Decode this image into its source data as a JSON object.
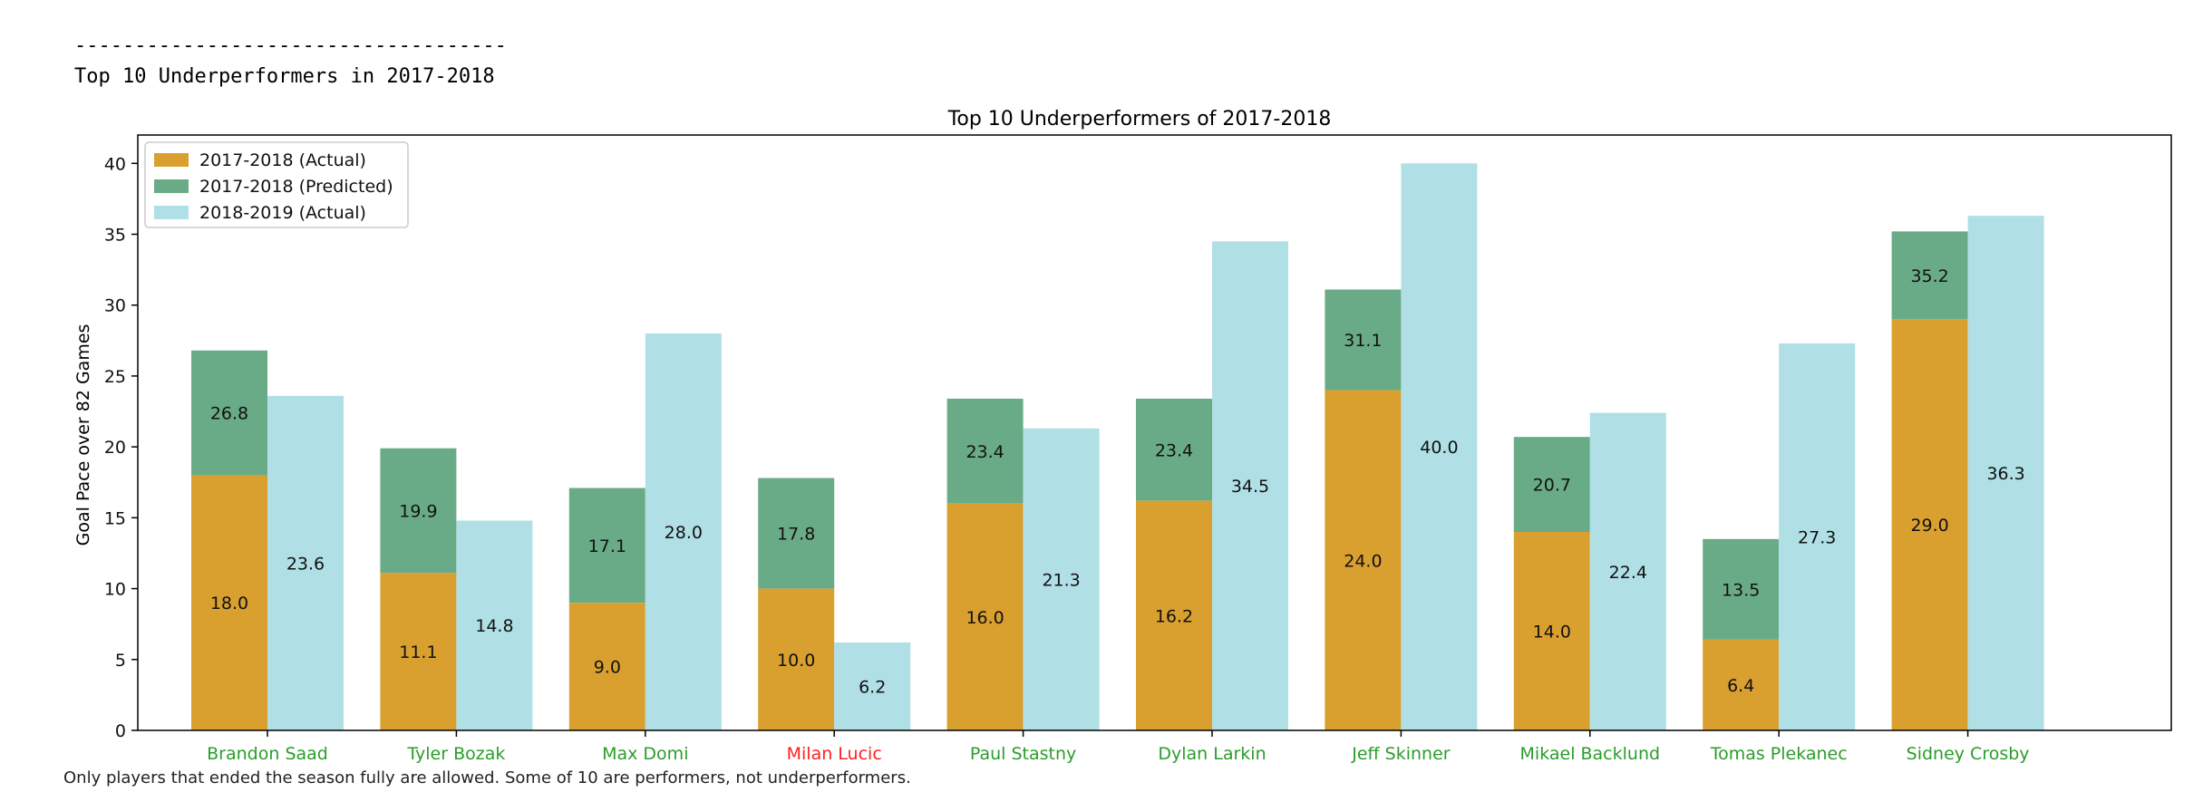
{
  "header": {
    "divider": "------------------------------------",
    "heading": "Top 10 Underperformers in 2017-2018"
  },
  "caption": "Only players that ended the season fully are allowed. Some of 10 are performers, not underperformers.",
  "colors": {
    "actual_2017": "#d9a030",
    "predicted_2017": "#6aab87",
    "actual_2018": "#b0e0e6",
    "label_good": "#2a9d2a",
    "label_bad": "#ff2020"
  },
  "chart_data": {
    "type": "bar",
    "title": "Top 10 Underperformers of 2017-2018",
    "xlabel": "",
    "ylabel": "Goal Pace over 82 Games",
    "ylim": [
      0,
      42
    ],
    "yticks": [
      0,
      5,
      10,
      15,
      20,
      25,
      30,
      35,
      40
    ],
    "grid": false,
    "legend_position": "top-left",
    "categories": [
      "Brandon Saad",
      "Tyler Bozak",
      "Max Domi",
      "Milan Lucic",
      "Paul Stastny",
      "Dylan Larkin",
      "Jeff Skinner",
      "Mikael Backlund",
      "Tomas Plekanec",
      "Sidney Crosby"
    ],
    "category_status": [
      "good",
      "good",
      "good",
      "bad",
      "good",
      "good",
      "good",
      "good",
      "good",
      "good"
    ],
    "series": [
      {
        "name": "2017-2018 (Actual)",
        "values": [
          18.0,
          11.1,
          9.0,
          10.0,
          16.0,
          16.2,
          24.0,
          14.0,
          6.4,
          29.0
        ]
      },
      {
        "name": "2017-2018 (Predicted)",
        "values": [
          26.8,
          19.9,
          17.1,
          17.8,
          23.4,
          23.4,
          31.1,
          20.7,
          13.5,
          35.2
        ]
      },
      {
        "name": "2018-2019 (Actual)",
        "values": [
          23.6,
          14.8,
          28.0,
          6.2,
          21.3,
          34.5,
          40.0,
          22.4,
          27.3,
          36.3
        ]
      }
    ]
  }
}
